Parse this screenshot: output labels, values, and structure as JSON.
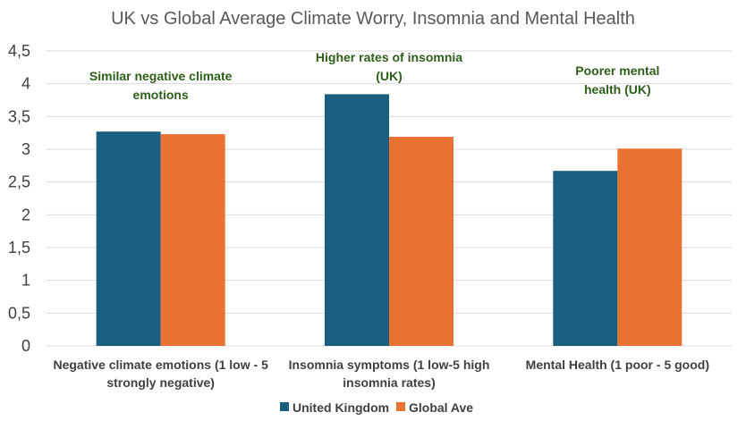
{
  "chart_data": {
    "type": "bar",
    "title": "UK vs Global Average Climate Worry, Insomnia and Mental Health",
    "categories": [
      [
        "Negative climate emotions (1 low - 5",
        "strongly negative)"
      ],
      [
        "Insomnia symptoms (1 low-5 high",
        "insomnia rates)"
      ],
      [
        "Mental Health (1 poor - 5 good)"
      ]
    ],
    "series": [
      {
        "name": "United Kingdom",
        "color": "#1a5e80",
        "values": [
          3.27,
          3.84,
          2.67
        ]
      },
      {
        "name": "Global Ave",
        "color": "#e97132",
        "values": [
          3.23,
          3.19,
          3.01
        ]
      }
    ],
    "ylim": [
      0,
      4.5
    ],
    "yticks": [
      "0",
      "0,5",
      "1",
      "1,5",
      "2",
      "2,5",
      "3",
      "3,5",
      "4",
      "4,5"
    ],
    "gridlines": true,
    "legend_position": "bottom",
    "annotations": [
      {
        "category": 0,
        "lines": [
          "Similar  negative climate",
          "emotions"
        ],
        "color": "#2e5e1a"
      },
      {
        "category": 1,
        "lines": [
          "Higher rates of insomnia",
          "(UK)"
        ],
        "color": "#2e5e1a"
      },
      {
        "category": 2,
        "lines": [
          "Poorer mental",
          "health (UK)"
        ],
        "color": "#2e5e1a"
      }
    ]
  }
}
